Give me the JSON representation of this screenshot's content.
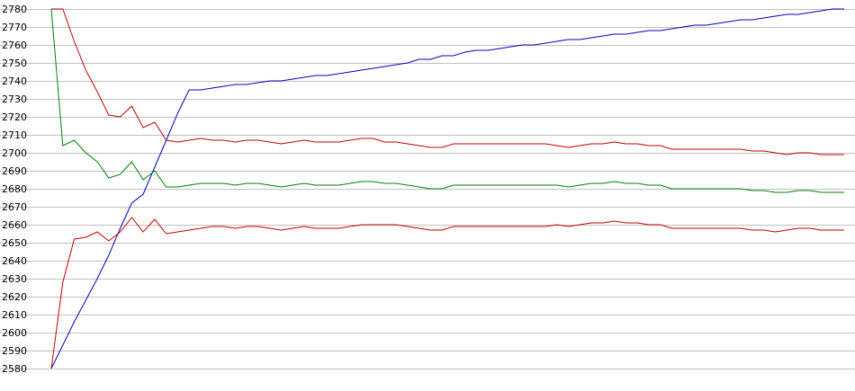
{
  "chart_data": {
    "type": "line",
    "title": "",
    "xlabel": "",
    "ylabel": "",
    "ylim": [
      2580,
      2780
    ],
    "y_ticks": [
      2580,
      2590,
      2600,
      2610,
      2620,
      2630,
      2640,
      2650,
      2660,
      2670,
      2680,
      2690,
      2700,
      2710,
      2720,
      2730,
      2740,
      2750,
      2760,
      2770,
      2780
    ],
    "grid": "horizontal",
    "legend": "none",
    "x": [
      0,
      1,
      2,
      3,
      4,
      5,
      6,
      7,
      8,
      9,
      10,
      11,
      12,
      13,
      14,
      15,
      16,
      17,
      18,
      19,
      20,
      21,
      22,
      23,
      24,
      25,
      26,
      27,
      28,
      29,
      30,
      31,
      32,
      33,
      34,
      35,
      36,
      37,
      38,
      39,
      40,
      41,
      42,
      43,
      44,
      45,
      46,
      47,
      48,
      49,
      50,
      51,
      52,
      53,
      54,
      55,
      56,
      57,
      58,
      59,
      60,
      61,
      62,
      63,
      64,
      65,
      66,
      67,
      68,
      69
    ],
    "series": [
      {
        "color": "#0000c0",
        "values": [
          2580,
          2593,
          2606,
          2618,
          2630,
          2643,
          2658,
          2672,
          2677,
          2692,
          2707,
          2722,
          2735,
          2735,
          2736,
          2737,
          2738,
          2738,
          2739,
          2740,
          2740,
          2741,
          2742,
          2743,
          2743,
          2744,
          2745,
          2746,
          2747,
          2748,
          2749,
          2750,
          2752,
          2752,
          2754,
          2754,
          2756,
          2757,
          2757,
          2758,
          2759,
          2760,
          2760,
          2761,
          2762,
          2763,
          2763,
          2764,
          2765,
          2766,
          2766,
          2767,
          2768,
          2768,
          2769,
          2770,
          2771,
          2771,
          2772,
          2773,
          2774,
          2774,
          2775,
          2776,
          2777,
          2777,
          2778,
          2779,
          2780,
          2780
        ]
      },
      {
        "color": "#c00000",
        "values": [
          2780,
          2780,
          2762,
          2746,
          2734,
          2721,
          2720,
          2726,
          2714,
          2717,
          2707,
          2706,
          2707,
          2708,
          2707,
          2707,
          2706,
          2707,
          2707,
          2706,
          2705,
          2706,
          2707,
          2706,
          2706,
          2706,
          2707,
          2708,
          2708,
          2706,
          2706,
          2705,
          2704,
          2703,
          2703,
          2705,
          2705,
          2705,
          2705,
          2705,
          2705,
          2705,
          2705,
          2705,
          2704,
          2703,
          2704,
          2705,
          2705,
          2706,
          2705,
          2705,
          2704,
          2704,
          2702,
          2702,
          2702,
          2702,
          2702,
          2702,
          2702,
          2701,
          2701,
          2700,
          2699,
          2700,
          2700,
          2699,
          2699,
          2699
        ]
      },
      {
        "color": "#008000",
        "values": [
          2780,
          2704,
          2707,
          2700,
          2695,
          2686,
          2688,
          2695,
          2685,
          2690,
          2681,
          2681,
          2682,
          2683,
          2683,
          2683,
          2682,
          2683,
          2683,
          2682,
          2681,
          2682,
          2683,
          2682,
          2682,
          2682,
          2683,
          2684,
          2684,
          2683,
          2683,
          2682,
          2681,
          2680,
          2680,
          2682,
          2682,
          2682,
          2682,
          2682,
          2682,
          2682,
          2682,
          2682,
          2682,
          2681,
          2682,
          2683,
          2683,
          2684,
          2683,
          2683,
          2682,
          2682,
          2680,
          2680,
          2680,
          2680,
          2680,
          2680,
          2680,
          2679,
          2679,
          2678,
          2678,
          2679,
          2679,
          2678,
          2678,
          2678
        ]
      },
      {
        "color": "#c00000",
        "values": [
          2580,
          2628,
          2652,
          2653,
          2656,
          2651,
          2656,
          2664,
          2656,
          2663,
          2655,
          2656,
          2657,
          2658,
          2659,
          2659,
          2658,
          2659,
          2659,
          2658,
          2657,
          2658,
          2659,
          2658,
          2658,
          2658,
          2659,
          2660,
          2660,
          2660,
          2660,
          2659,
          2658,
          2657,
          2657,
          2659,
          2659,
          2659,
          2659,
          2659,
          2659,
          2659,
          2659,
          2659,
          2660,
          2659,
          2660,
          2661,
          2661,
          2662,
          2661,
          2661,
          2660,
          2660,
          2658,
          2658,
          2658,
          2658,
          2658,
          2658,
          2658,
          2657,
          2657,
          2656,
          2657,
          2658,
          2658,
          2657,
          2657,
          2657
        ]
      }
    ]
  }
}
